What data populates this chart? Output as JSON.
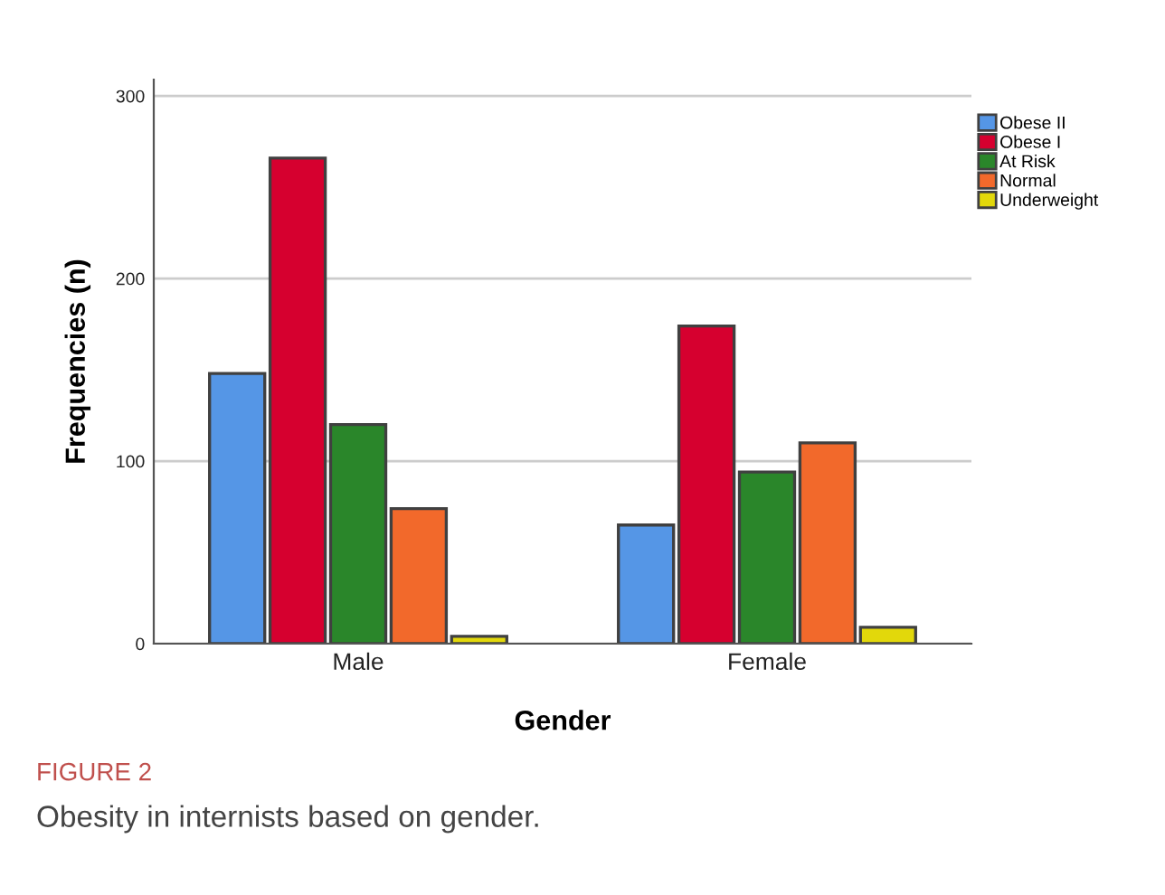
{
  "chart_data": {
    "type": "bar",
    "xlabel": "Gender",
    "ylabel": "Frequencies (n)",
    "categories": [
      "Male",
      "Female"
    ],
    "series": [
      {
        "name": "Obese II",
        "color": "#5596e6",
        "values": [
          148,
          65
        ]
      },
      {
        "name": "Obese I",
        "color": "#d6002f",
        "values": [
          266,
          174
        ]
      },
      {
        "name": "At Risk",
        "color": "#2a862a",
        "values": [
          120,
          94
        ]
      },
      {
        "name": "Normal",
        "color": "#f2692b",
        "values": [
          74,
          110
        ]
      },
      {
        "name": "Underweight",
        "color": "#e2d80b",
        "values": [
          4,
          9
        ]
      }
    ],
    "ylim": [
      0,
      309
    ],
    "yticks": [
      0,
      100,
      200,
      300
    ],
    "grid": "y",
    "legend": "right",
    "annotations": [
      "FIGURE 2",
      "Obesity in internists based on gender."
    ]
  }
}
